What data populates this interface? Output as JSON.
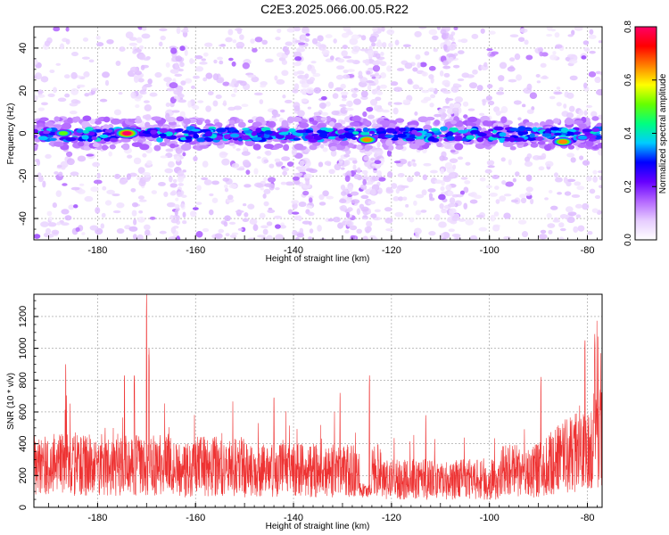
{
  "title": "C2E3.2025.066.00.05.R22",
  "chart_data": [
    {
      "type": "heatmap",
      "xlabel": "Height of straight line (km)",
      "ylabel": "Frequency (Hz)",
      "xlim": [
        -193,
        -77
      ],
      "ylim": [
        -50,
        50
      ],
      "xticks": [
        -180,
        -160,
        -140,
        -120,
        -100,
        -80
      ],
      "yticks": [
        -40,
        -20,
        0,
        20,
        40
      ],
      "grid": true,
      "colorbar": {
        "label": "Normalized spectral amplitude",
        "range": [
          0.0,
          0.8
        ],
        "ticks": [
          "0.0",
          "0.2",
          "0.4",
          "0.6",
          "0.8"
        ],
        "colormap": [
          "#ffffff",
          "#e6ccff",
          "#b366ff",
          "#6600ff",
          "#0000ff",
          "#00ccff",
          "#00ff80",
          "#66ff00",
          "#ffff00",
          "#ff8000",
          "#ff0000",
          "#ff0066"
        ]
      },
      "band_center_hz": 0,
      "band_halfwidth_hz": 4,
      "hotspots": [
        {
          "x": -174,
          "y": 0,
          "amp": 0.8
        },
        {
          "x": -125,
          "y": -3,
          "amp": 0.75
        },
        {
          "x": -85,
          "y": -4,
          "amp": 0.75
        },
        {
          "x": -187,
          "y": 0,
          "amp": 0.5
        },
        {
          "x": -152,
          "y": -1,
          "amp": 0.45
        },
        {
          "x": -81,
          "y": -2,
          "amp": 0.45
        }
      ],
      "vertical_features_km": [
        -171,
        -164,
        -138,
        -129,
        -124,
        -108
      ]
    },
    {
      "type": "line",
      "xlabel": "Height of straight line (km)",
      "ylabel": "SNR (10 * v/v)",
      "xlim": [
        -193,
        -77
      ],
      "ylim": [
        0,
        1340
      ],
      "xticks": [
        -180,
        -160,
        -140,
        -120,
        -100,
        -80
      ],
      "yticks": [
        0,
        200,
        400,
        600,
        800,
        1000,
        1200
      ],
      "grid": true,
      "color": "#ee3333",
      "baseline": 250,
      "peaks": [
        {
          "x": -186.5,
          "y": 900
        },
        {
          "x": -174.5,
          "y": 830
        },
        {
          "x": -172.5,
          "y": 830
        },
        {
          "x": -170.0,
          "y": 1340
        },
        {
          "x": -169.5,
          "y": 1000
        },
        {
          "x": -144.0,
          "y": 690
        },
        {
          "x": -130.5,
          "y": 720
        },
        {
          "x": -124.5,
          "y": 830
        },
        {
          "x": -113.0,
          "y": 580
        },
        {
          "x": -89.5,
          "y": 820
        },
        {
          "x": -80.5,
          "y": 1050
        },
        {
          "x": -78.5,
          "y": 1090
        }
      ],
      "gap_km": [
        -126.5,
        -124.0
      ]
    }
  ]
}
